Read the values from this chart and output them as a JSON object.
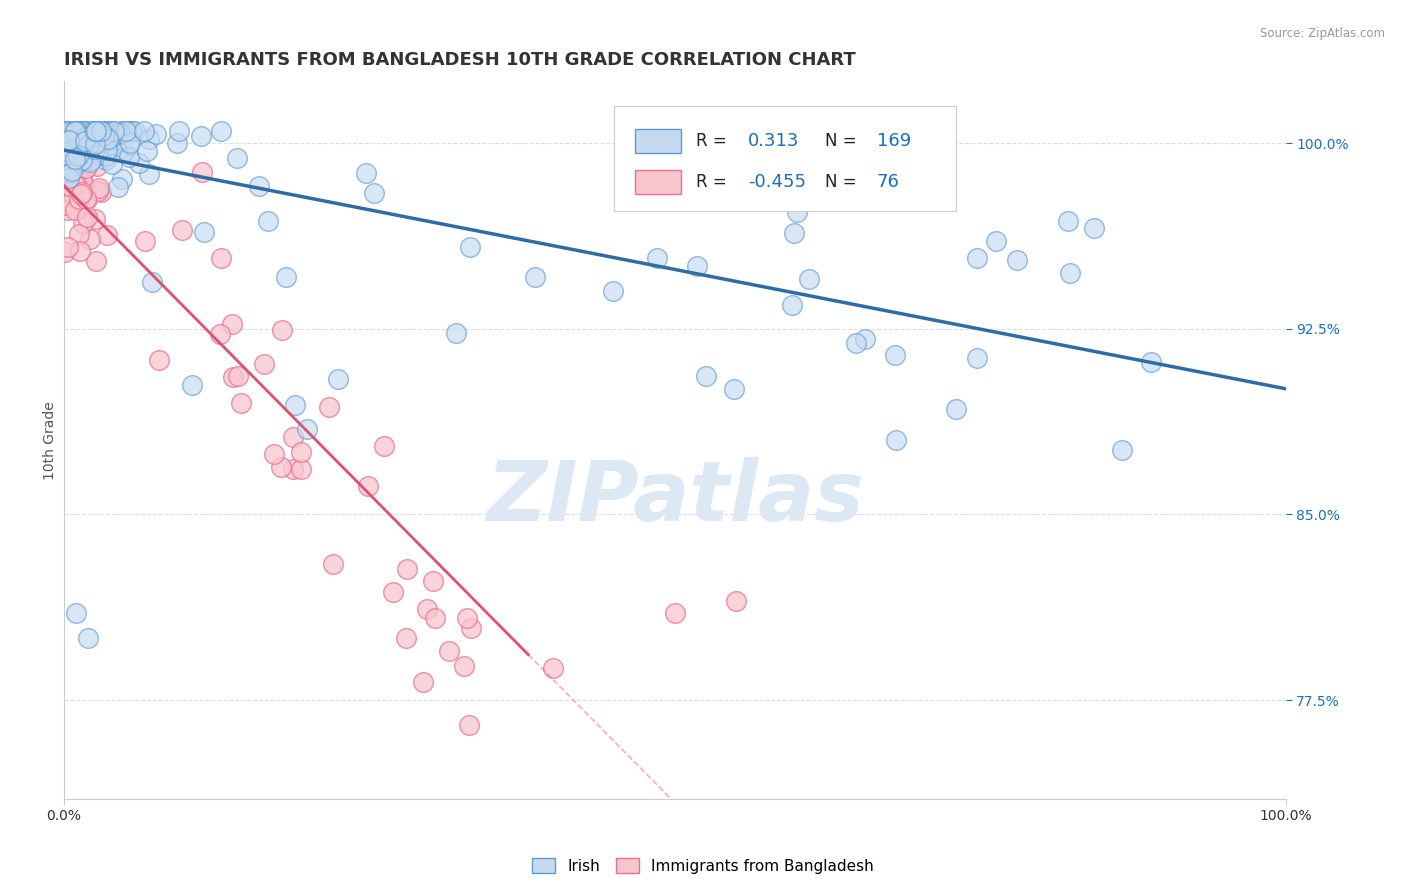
{
  "title": "IRISH VS IMMIGRANTS FROM BANGLADESH 10TH GRADE CORRELATION CHART",
  "source": "Source: ZipAtlas.com",
  "ylabel": "10th Grade",
  "r_irish": 0.313,
  "n_irish": 169,
  "r_bangladesh": -0.455,
  "n_bangladesh": 76,
  "irish_color": "#c5daf0",
  "irish_edge_color": "#5b9bd5",
  "irish_line_color": "#2e6da4",
  "bangladesh_color": "#f9c6d0",
  "bangladesh_edge_color": "#e87090",
  "bangladesh_line_color": "#e05070",
  "dashed_line_color": "#c8c8c8",
  "legend_r_color": "#1a6fba",
  "legend_n_color": "#1a6fba",
  "watermark_color": "#dce8f4",
  "xlim": [
    0.0,
    1.0
  ],
  "ylim": [
    0.735,
    1.025
  ],
  "background_color": "#ffffff",
  "title_fontsize": 13,
  "axis_label_fontsize": 10,
  "right_tick_color": "#1a6fba"
}
